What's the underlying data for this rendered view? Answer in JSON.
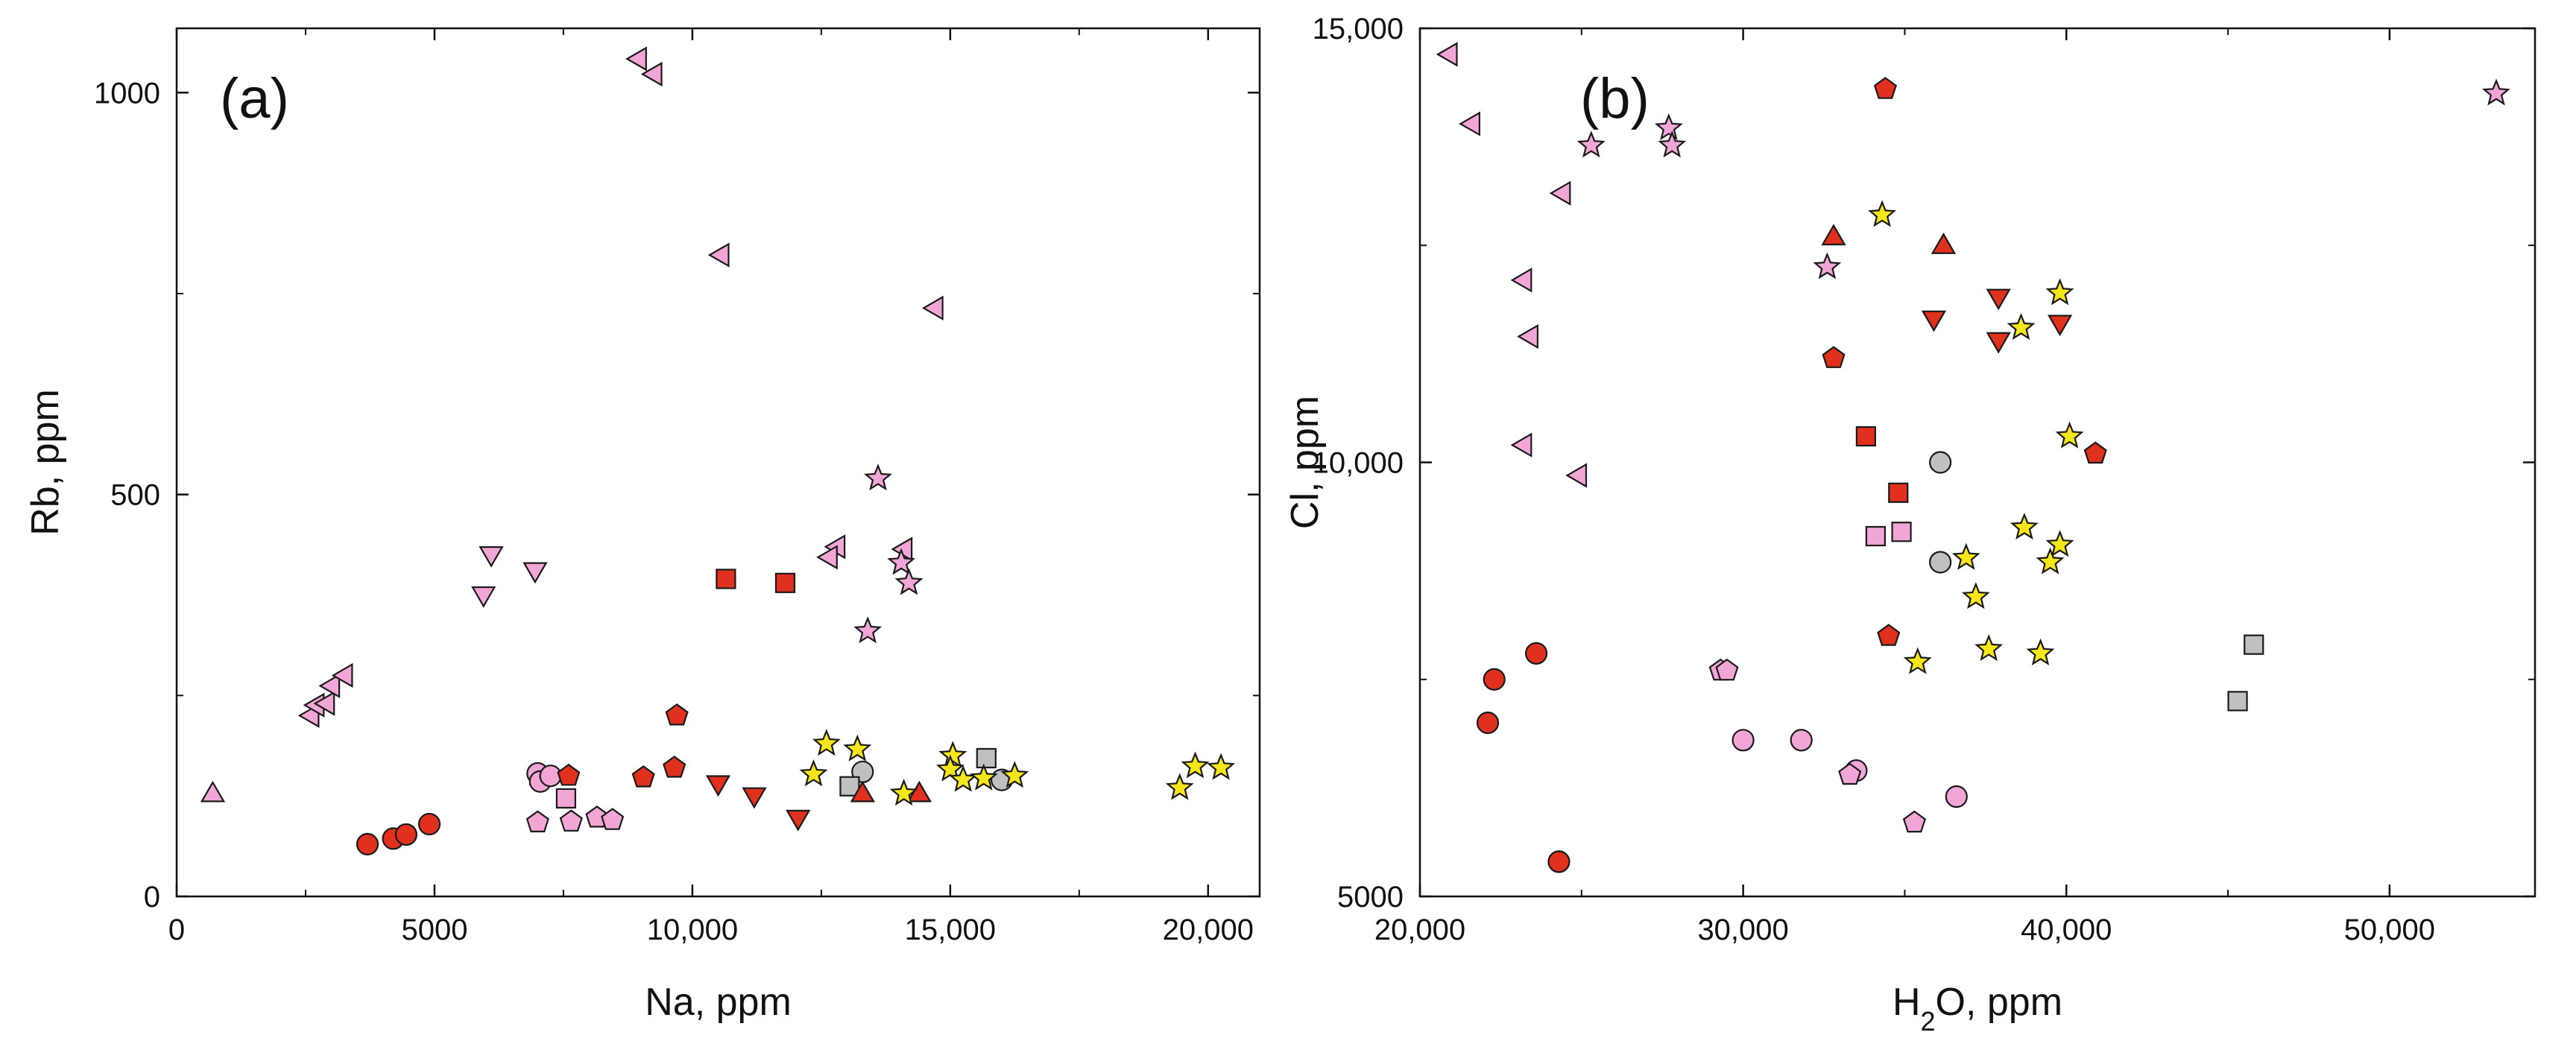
{
  "palette": {
    "red": "#e0301e",
    "pink": "#f2a6d6",
    "gray": "#c0c0c0",
    "yellow": "#f5e51b",
    "stroke": "#1a1a1a"
  },
  "chart_data": [
    {
      "type": "scatter",
      "panel_label": "(a)",
      "xlabel": "Na, ppm",
      "ylabel": "Rb, ppm",
      "xlim": [
        0,
        21000
      ],
      "ylim": [
        0,
        1080
      ],
      "xticks": [
        0,
        5000,
        10000,
        15000,
        20000
      ],
      "xtick_labels": [
        "0",
        "5000",
        "10,000",
        "15,000",
        "20,000"
      ],
      "yticks": [
        0,
        500,
        1000
      ],
      "ytick_labels": [
        "0",
        "500",
        "1000"
      ],
      "points": [
        {
          "x": 3700,
          "y": 65,
          "m": "circle",
          "c": "red"
        },
        {
          "x": 4200,
          "y": 72,
          "m": "circle",
          "c": "red"
        },
        {
          "x": 4450,
          "y": 77,
          "m": "circle",
          "c": "red"
        },
        {
          "x": 4900,
          "y": 90,
          "m": "circle",
          "c": "red"
        },
        {
          "x": 7000,
          "y": 153,
          "m": "circle",
          "c": "pink"
        },
        {
          "x": 7050,
          "y": 143,
          "m": "circle",
          "c": "pink"
        },
        {
          "x": 7250,
          "y": 150,
          "m": "circle",
          "c": "pink"
        },
        {
          "x": 13300,
          "y": 155,
          "m": "circle",
          "c": "gray"
        },
        {
          "x": 16000,
          "y": 145,
          "m": "circle",
          "c": "gray"
        },
        {
          "x": 7600,
          "y": 150,
          "m": "pentagon",
          "c": "red"
        },
        {
          "x": 9050,
          "y": 148,
          "m": "pentagon",
          "c": "red"
        },
        {
          "x": 9650,
          "y": 160,
          "m": "pentagon",
          "c": "red"
        },
        {
          "x": 9700,
          "y": 225,
          "m": "pentagon",
          "c": "red"
        },
        {
          "x": 7000,
          "y": 92,
          "m": "pentagon",
          "c": "pink"
        },
        {
          "x": 7650,
          "y": 93,
          "m": "pentagon",
          "c": "pink"
        },
        {
          "x": 8150,
          "y": 98,
          "m": "pentagon",
          "c": "pink"
        },
        {
          "x": 8450,
          "y": 95,
          "m": "pentagon",
          "c": "pink"
        },
        {
          "x": 10650,
          "y": 395,
          "m": "square",
          "c": "red"
        },
        {
          "x": 11800,
          "y": 390,
          "m": "square",
          "c": "red"
        },
        {
          "x": 7550,
          "y": 122,
          "m": "square",
          "c": "pink"
        },
        {
          "x": 13050,
          "y": 137,
          "m": "square",
          "c": "gray"
        },
        {
          "x": 15700,
          "y": 172,
          "m": "square",
          "c": "gray"
        },
        {
          "x": 10500,
          "y": 140,
          "m": "tri-down",
          "c": "red"
        },
        {
          "x": 11200,
          "y": 125,
          "m": "tri-down",
          "c": "red"
        },
        {
          "x": 12050,
          "y": 97,
          "m": "tri-down",
          "c": "red"
        },
        {
          "x": 5950,
          "y": 375,
          "m": "tri-down",
          "c": "pink"
        },
        {
          "x": 6100,
          "y": 425,
          "m": "tri-down",
          "c": "pink"
        },
        {
          "x": 6950,
          "y": 405,
          "m": "tri-down",
          "c": "pink"
        },
        {
          "x": 13300,
          "y": 128,
          "m": "tri-up",
          "c": "red"
        },
        {
          "x": 14400,
          "y": 128,
          "m": "tri-up",
          "c": "red"
        },
        {
          "x": 700,
          "y": 128,
          "m": "tri-up",
          "c": "pink"
        },
        {
          "x": 8950,
          "y": 1042,
          "m": "tri-left",
          "c": "pink"
        },
        {
          "x": 9250,
          "y": 1023,
          "m": "tri-left",
          "c": "pink"
        },
        {
          "x": 10550,
          "y": 798,
          "m": "tri-left",
          "c": "pink"
        },
        {
          "x": 14700,
          "y": 732,
          "m": "tri-left",
          "c": "pink"
        },
        {
          "x": 12800,
          "y": 435,
          "m": "tri-left",
          "c": "pink"
        },
        {
          "x": 12650,
          "y": 422,
          "m": "tri-left",
          "c": "pink"
        },
        {
          "x": 14100,
          "y": 432,
          "m": "tri-left",
          "c": "pink"
        },
        {
          "x": 2600,
          "y": 225,
          "m": "tri-left",
          "c": "pink"
        },
        {
          "x": 2700,
          "y": 238,
          "m": "tri-left",
          "c": "pink"
        },
        {
          "x": 2900,
          "y": 240,
          "m": "tri-left",
          "c": "pink"
        },
        {
          "x": 3000,
          "y": 262,
          "m": "tri-left",
          "c": "pink"
        },
        {
          "x": 3250,
          "y": 275,
          "m": "tri-left",
          "c": "pink"
        },
        {
          "x": 13600,
          "y": 520,
          "m": "star",
          "c": "pink"
        },
        {
          "x": 14050,
          "y": 415,
          "m": "star",
          "c": "pink"
        },
        {
          "x": 14200,
          "y": 390,
          "m": "star",
          "c": "pink"
        },
        {
          "x": 13400,
          "y": 330,
          "m": "star",
          "c": "pink"
        },
        {
          "x": 12600,
          "y": 190,
          "m": "star",
          "c": "yellow"
        },
        {
          "x": 12350,
          "y": 152,
          "m": "star",
          "c": "yellow"
        },
        {
          "x": 13200,
          "y": 183,
          "m": "star",
          "c": "yellow"
        },
        {
          "x": 14100,
          "y": 128,
          "m": "star",
          "c": "yellow"
        },
        {
          "x": 15050,
          "y": 175,
          "m": "star",
          "c": "yellow"
        },
        {
          "x": 15000,
          "y": 158,
          "m": "star",
          "c": "yellow"
        },
        {
          "x": 15250,
          "y": 145,
          "m": "star",
          "c": "yellow"
        },
        {
          "x": 15650,
          "y": 147,
          "m": "star",
          "c": "yellow"
        },
        {
          "x": 16250,
          "y": 150,
          "m": "star",
          "c": "yellow"
        },
        {
          "x": 19450,
          "y": 135,
          "m": "star",
          "c": "yellow"
        },
        {
          "x": 19750,
          "y": 162,
          "m": "star",
          "c": "yellow"
        },
        {
          "x": 20250,
          "y": 160,
          "m": "star",
          "c": "yellow"
        }
      ]
    },
    {
      "type": "scatter",
      "panel_label": "(b)",
      "xlabel": "H2O, ppm",
      "ylabel": "Cl, ppm",
      "xlim": [
        20000,
        54500
      ],
      "ylim": [
        5000,
        15000
      ],
      "xticks": [
        20000,
        30000,
        40000,
        50000
      ],
      "xtick_labels": [
        "20,000",
        "30,000",
        "40,000",
        "50,000"
      ],
      "yticks": [
        5000,
        10000,
        15000
      ],
      "ytick_labels": [
        "5000",
        "10,000",
        "15,000"
      ],
      "points": [
        {
          "x": 22300,
          "y": 7500,
          "m": "circle",
          "c": "red"
        },
        {
          "x": 22100,
          "y": 7000,
          "m": "circle",
          "c": "red"
        },
        {
          "x": 23600,
          "y": 7800,
          "m": "circle",
          "c": "red"
        },
        {
          "x": 24300,
          "y": 5400,
          "m": "circle",
          "c": "red"
        },
        {
          "x": 30000,
          "y": 6800,
          "m": "circle",
          "c": "pink"
        },
        {
          "x": 31800,
          "y": 6800,
          "m": "circle",
          "c": "pink"
        },
        {
          "x": 33500,
          "y": 6450,
          "m": "circle",
          "c": "pink"
        },
        {
          "x": 36600,
          "y": 6150,
          "m": "circle",
          "c": "pink"
        },
        {
          "x": 36100,
          "y": 10000,
          "m": "circle",
          "c": "gray"
        },
        {
          "x": 36100,
          "y": 8850,
          "m": "circle",
          "c": "gray"
        },
        {
          "x": 34400,
          "y": 14300,
          "m": "pentagon",
          "c": "red"
        },
        {
          "x": 32800,
          "y": 11200,
          "m": "pentagon",
          "c": "red"
        },
        {
          "x": 34500,
          "y": 8000,
          "m": "pentagon",
          "c": "red"
        },
        {
          "x": 40900,
          "y": 10100,
          "m": "pentagon",
          "c": "red"
        },
        {
          "x": 29300,
          "y": 7600,
          "m": "pentagon",
          "c": "pink"
        },
        {
          "x": 29500,
          "y": 7600,
          "m": "pentagon",
          "c": "pink"
        },
        {
          "x": 33300,
          "y": 6400,
          "m": "pentagon",
          "c": "pink"
        },
        {
          "x": 35300,
          "y": 5850,
          "m": "pentagon",
          "c": "pink"
        },
        {
          "x": 33800,
          "y": 10300,
          "m": "square",
          "c": "red"
        },
        {
          "x": 34800,
          "y": 9650,
          "m": "square",
          "c": "red"
        },
        {
          "x": 34100,
          "y": 9150,
          "m": "square",
          "c": "pink"
        },
        {
          "x": 34900,
          "y": 9200,
          "m": "square",
          "c": "pink"
        },
        {
          "x": 45300,
          "y": 7250,
          "m": "square",
          "c": "gray"
        },
        {
          "x": 45800,
          "y": 7900,
          "m": "square",
          "c": "gray"
        },
        {
          "x": 35900,
          "y": 11650,
          "m": "tri-down",
          "c": "red"
        },
        {
          "x": 37900,
          "y": 11900,
          "m": "tri-down",
          "c": "red"
        },
        {
          "x": 37900,
          "y": 11400,
          "m": "tri-down",
          "c": "red"
        },
        {
          "x": 39800,
          "y": 11600,
          "m": "tri-down",
          "c": "red"
        },
        {
          "x": 32800,
          "y": 12600,
          "m": "tri-up",
          "c": "red"
        },
        {
          "x": 36200,
          "y": 12500,
          "m": "tri-up",
          "c": "red"
        },
        {
          "x": 20900,
          "y": 14700,
          "m": "tri-left",
          "c": "pink"
        },
        {
          "x": 21600,
          "y": 13900,
          "m": "tri-left",
          "c": "pink"
        },
        {
          "x": 24400,
          "y": 13100,
          "m": "tri-left",
          "c": "pink"
        },
        {
          "x": 23200,
          "y": 12100,
          "m": "tri-left",
          "c": "pink"
        },
        {
          "x": 23400,
          "y": 11450,
          "m": "tri-left",
          "c": "pink"
        },
        {
          "x": 23200,
          "y": 10200,
          "m": "tri-left",
          "c": "pink"
        },
        {
          "x": 24900,
          "y": 9850,
          "m": "tri-left",
          "c": "pink"
        },
        {
          "x": 25300,
          "y": 13650,
          "m": "star",
          "c": "pink"
        },
        {
          "x": 27700,
          "y": 13850,
          "m": "star",
          "c": "pink"
        },
        {
          "x": 27800,
          "y": 13650,
          "m": "star",
          "c": "pink"
        },
        {
          "x": 32600,
          "y": 12250,
          "m": "star",
          "c": "pink"
        },
        {
          "x": 53300,
          "y": 14250,
          "m": "star",
          "c": "pink"
        },
        {
          "x": 34300,
          "y": 12850,
          "m": "star",
          "c": "yellow"
        },
        {
          "x": 39800,
          "y": 11950,
          "m": "star",
          "c": "yellow"
        },
        {
          "x": 38600,
          "y": 11550,
          "m": "star",
          "c": "yellow"
        },
        {
          "x": 40100,
          "y": 10300,
          "m": "star",
          "c": "yellow"
        },
        {
          "x": 38700,
          "y": 9250,
          "m": "star",
          "c": "yellow"
        },
        {
          "x": 39800,
          "y": 9050,
          "m": "star",
          "c": "yellow"
        },
        {
          "x": 39500,
          "y": 8850,
          "m": "star",
          "c": "yellow"
        },
        {
          "x": 36900,
          "y": 8900,
          "m": "star",
          "c": "yellow"
        },
        {
          "x": 37200,
          "y": 8450,
          "m": "star",
          "c": "yellow"
        },
        {
          "x": 35400,
          "y": 7700,
          "m": "star",
          "c": "yellow"
        },
        {
          "x": 37600,
          "y": 7850,
          "m": "star",
          "c": "yellow"
        },
        {
          "x": 39200,
          "y": 7800,
          "m": "star",
          "c": "yellow"
        }
      ]
    }
  ]
}
